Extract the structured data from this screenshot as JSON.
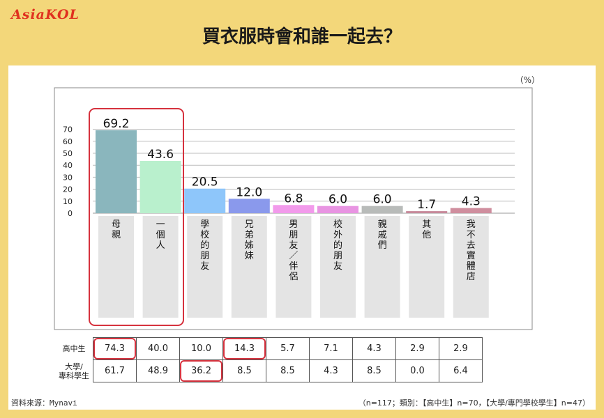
{
  "header": {
    "logo": "AsiaKOL",
    "title": "買衣服時會和誰一起去？"
  },
  "unit_label": "（%）",
  "chart_data": {
    "type": "bar",
    "categories": [
      "母親",
      "一個人",
      "學校的朋友",
      "兄弟姊妹",
      "男朋友/伴侶",
      "校外的朋友",
      "親戚們",
      "其他",
      "我不去實體店"
    ],
    "values": [
      69.2,
      43.6,
      20.5,
      12.0,
      6.8,
      6.0,
      6.0,
      1.7,
      4.3
    ],
    "value_labels": [
      "69.2",
      "43.6",
      "20.5",
      "12.0",
      "6.8",
      "6.0",
      "6.0",
      "1.7",
      "4.3"
    ],
    "colors": [
      "#8ab6bd",
      "#b9f0cd",
      "#8ec6fa",
      "#8a99ec",
      "#f29aeb",
      "#e894e2",
      "#b8bbb9",
      "#c78a9b",
      "#cf8e9e"
    ],
    "ylim": [
      0,
      70
    ],
    "yticks": [
      "0",
      "10",
      "20",
      "30",
      "40",
      "50",
      "60",
      "70"
    ],
    "grid": true,
    "highlight_color": "#d6323e"
  },
  "table": {
    "rows": [
      {
        "label": "高中生",
        "values": [
          "74.3",
          "40.0",
          "10.0",
          "14.3",
          "5.7",
          "7.1",
          "4.3",
          "2.9",
          "2.9"
        ],
        "highlight": [
          0,
          3
        ]
      },
      {
        "label": "大學/\n專科學生",
        "values": [
          "61.7",
          "48.9",
          "36.2",
          "8.5",
          "8.5",
          "4.3",
          "8.5",
          "0.0",
          "6.4"
        ],
        "highlight": [
          2
        ]
      }
    ]
  },
  "footer": {
    "source": "資料來源：Mynavi",
    "note": "（n=117；類別：【高中生】n=70，【大學/專門學校學生】n=47）"
  }
}
